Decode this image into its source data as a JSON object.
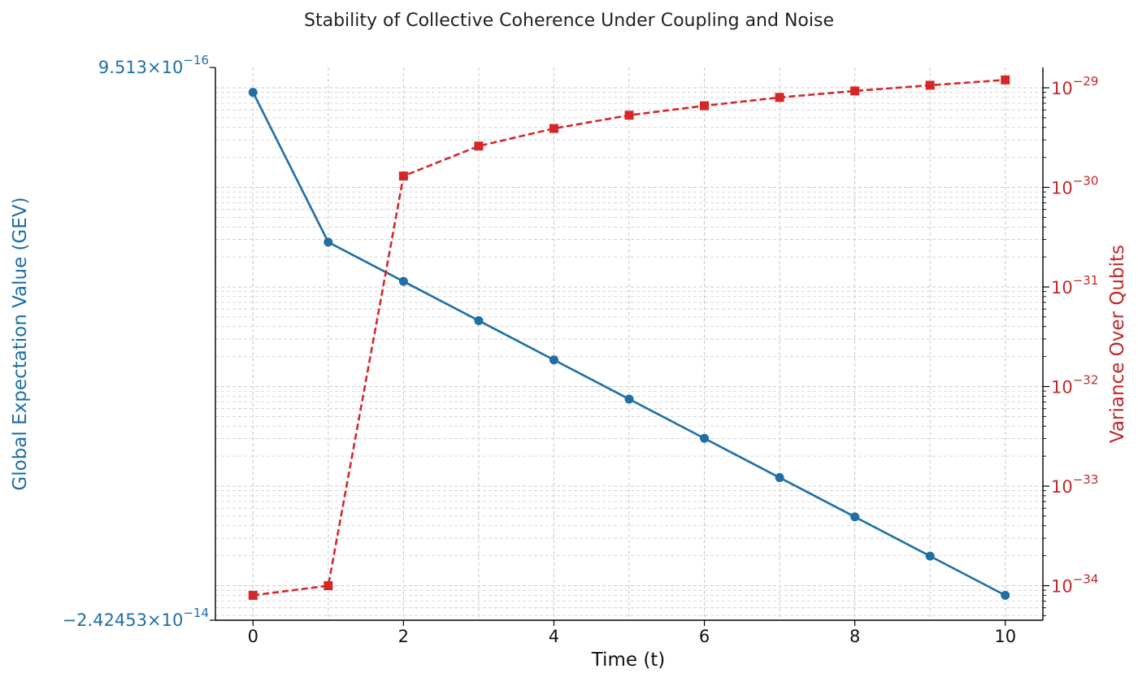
{
  "chart_data": {
    "type": "line",
    "title": "Stability of Collective Coherence Under Coupling and Noise",
    "xlabel": "Time (t)",
    "x": [
      0,
      1,
      2,
      3,
      4,
      5,
      6,
      7,
      8,
      9,
      10
    ],
    "xticks": [
      "0",
      "2",
      "4",
      "6",
      "8",
      "10"
    ],
    "xlim": [
      -0.5,
      10.5
    ],
    "grid": true,
    "y_left": {
      "label": "Global Expectation Value (GEV)",
      "scale": "log",
      "color": "#1f6fa5",
      "tick_labels": [
        {
          "mantissa": "9.513",
          "exponent": "−16"
        },
        {
          "mantissa": "−2.42453",
          "exponent": "−14"
        }
      ]
    },
    "y_right": {
      "label": "Variance Over Qubits",
      "scale": "log",
      "color": "#c0282b",
      "ylim": [
        4.5e-35,
        1.6e-29
      ],
      "tick_exponents": [
        "−34",
        "−33",
        "−32",
        "−31",
        "−30",
        "−29"
      ]
    },
    "series": [
      {
        "axis": "left",
        "color": "#1f6fa5",
        "marker": "circle",
        "linestyle": "solid",
        "values_norm": [
          0.955,
          0.684,
          0.613,
          0.542,
          0.471,
          0.4,
          0.329,
          0.258,
          0.187,
          0.116,
          0.045
        ]
      },
      {
        "axis": "right",
        "color": "#d62728",
        "marker": "square",
        "linestyle": "dashed",
        "values": [
          8e-35,
          1e-34,
          1.3e-30,
          2.6e-30,
          3.9e-30,
          5.3e-30,
          6.6e-30,
          8e-30,
          9.3e-30,
          1.06e-29,
          1.2e-29
        ]
      }
    ]
  }
}
